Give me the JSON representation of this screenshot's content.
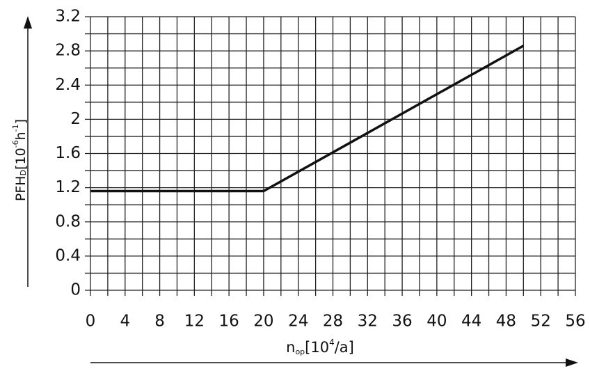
{
  "chart_data": {
    "type": "line",
    "xlabel": {
      "main": "n",
      "sub": "op",
      "open": "[10",
      "sup": "4",
      "close": "/a]"
    },
    "ylabel": {
      "main": "PFH",
      "sub": "D",
      "open": "[10",
      "sup1": "-6",
      "unit": "h",
      "sup2": "-1",
      "close": "]"
    },
    "x": [
      0,
      20,
      50
    ],
    "series": [
      {
        "color": "#111111",
        "values": [
          1.16,
          1.16,
          2.86
        ]
      }
    ],
    "xlim": [
      0,
      56
    ],
    "ylim": [
      0,
      3.2
    ],
    "xticks": [
      0,
      4,
      8,
      12,
      16,
      20,
      24,
      28,
      32,
      36,
      40,
      44,
      48,
      52,
      56
    ],
    "yticks": [
      0,
      0.4,
      0.8,
      1.2,
      1.6,
      2,
      2.4,
      2.8,
      3.2
    ],
    "xminorticks": [
      2,
      6,
      10,
      14,
      18,
      22,
      26,
      30,
      34,
      38,
      42,
      46,
      50,
      54
    ],
    "yminorticks": [
      0.2,
      0.6,
      1.0,
      1.4,
      1.8,
      2.2,
      2.6,
      3.0
    ],
    "grid": true
  }
}
